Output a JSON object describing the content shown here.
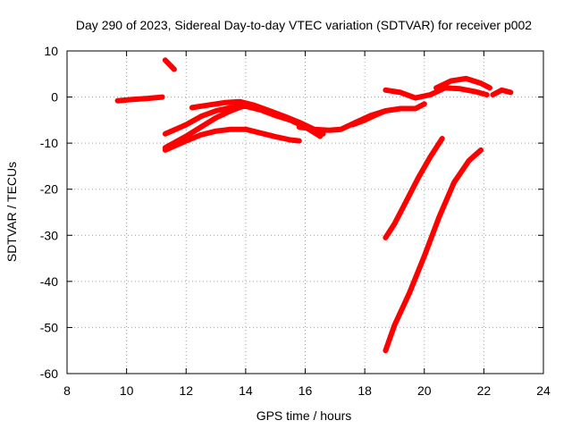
{
  "chart_data": {
    "type": "line",
    "title": "Day 290 of 2023, Sidereal Day-to-day VTEC variation (SDTVAR) for receiver p002",
    "xlabel": "GPS time / hours",
    "ylabel": "SDTVAR / TECUs",
    "xlim": [
      8,
      24
    ],
    "ylim": [
      -60,
      10
    ],
    "xticks": [
      "8",
      "10",
      "12",
      "14",
      "16",
      "18",
      "20",
      "22",
      "24"
    ],
    "yticks": [
      "10",
      "0",
      "-10",
      "-20",
      "-30",
      "-40",
      "-50",
      "-60"
    ],
    "grid": true,
    "color": "#ff0000",
    "series": [
      {
        "name": "track-1",
        "x": [
          9.7,
          10.2,
          10.7,
          11.2
        ],
        "y": [
          -0.8,
          -0.5,
          -0.3,
          0.0
        ]
      },
      {
        "name": "track-2",
        "x": [
          11.3,
          11.6
        ],
        "y": [
          8.0,
          6.0
        ]
      },
      {
        "name": "track-3",
        "x": [
          11.3,
          12.0,
          12.5,
          13.0,
          13.5,
          13.9
        ],
        "y": [
          -11.0,
          -8.5,
          -6.5,
          -4.5,
          -3.0,
          -2.0
        ]
      },
      {
        "name": "track-4",
        "x": [
          11.3,
          12.0,
          12.5,
          13.0,
          13.5,
          14.0,
          14.5,
          15.0,
          15.5,
          15.8
        ],
        "y": [
          -11.5,
          -9.5,
          -8.2,
          -7.4,
          -7.0,
          -7.0,
          -7.8,
          -8.6,
          -9.3,
          -9.5
        ]
      },
      {
        "name": "track-5",
        "x": [
          11.3,
          12.0,
          12.5,
          13.0,
          13.5,
          14.0,
          14.5,
          15.0,
          15.5,
          16.0,
          16.5
        ],
        "y": [
          -8.0,
          -6.0,
          -4.2,
          -3.0,
          -2.3,
          -2.0,
          -2.8,
          -4.0,
          -5.0,
          -6.5,
          -8.5
        ]
      },
      {
        "name": "track-6",
        "x": [
          12.2,
          12.8,
          13.3,
          13.8,
          14.3,
          14.8,
          15.3,
          15.8,
          16.3,
          16.6
        ],
        "y": [
          -2.3,
          -1.7,
          -1.2,
          -1.0,
          -1.8,
          -3.0,
          -4.2,
          -5.5,
          -7.0,
          -8.0
        ]
      },
      {
        "name": "track-7",
        "x": [
          15.8,
          16.3,
          16.8,
          17.2,
          17.7,
          18.2,
          18.7,
          19.2,
          19.7,
          20.0
        ],
        "y": [
          -6.5,
          -7.0,
          -7.2,
          -7.0,
          -5.5,
          -4.0,
          -3.0,
          -2.5,
          -2.5,
          -1.5
        ]
      },
      {
        "name": "track-8",
        "x": [
          17.6,
          18.0,
          18.4,
          18.7
        ],
        "y": [
          -6.0,
          -5.0,
          -3.8,
          -3.0
        ]
      },
      {
        "name": "track-9",
        "x": [
          18.7,
          19.2,
          19.7,
          20.2,
          20.7,
          21.2,
          21.7,
          22.1
        ],
        "y": [
          1.5,
          1.0,
          -0.2,
          0.5,
          2.0,
          1.8,
          1.2,
          0.5
        ]
      },
      {
        "name": "track-10",
        "x": [
          20.4,
          20.9,
          21.4,
          21.9,
          22.2
        ],
        "y": [
          2.0,
          3.5,
          4.0,
          3.0,
          2.0
        ]
      },
      {
        "name": "track-11",
        "x": [
          22.3,
          22.6,
          22.9
        ],
        "y": [
          0.5,
          1.5,
          1.0
        ]
      },
      {
        "name": "track-12",
        "x": [
          18.7,
          19.0,
          19.4,
          19.8,
          20.2,
          20.6
        ],
        "y": [
          -30.5,
          -27.5,
          -22.5,
          -17.5,
          -13.0,
          -9.0
        ]
      },
      {
        "name": "track-13",
        "x": [
          18.7,
          19.0,
          19.5,
          20.0,
          20.5,
          21.0,
          21.5,
          21.9
        ],
        "y": [
          -55.0,
          -49.5,
          -42.5,
          -34.5,
          -26.0,
          -18.5,
          -13.8,
          -11.5
        ]
      }
    ]
  }
}
